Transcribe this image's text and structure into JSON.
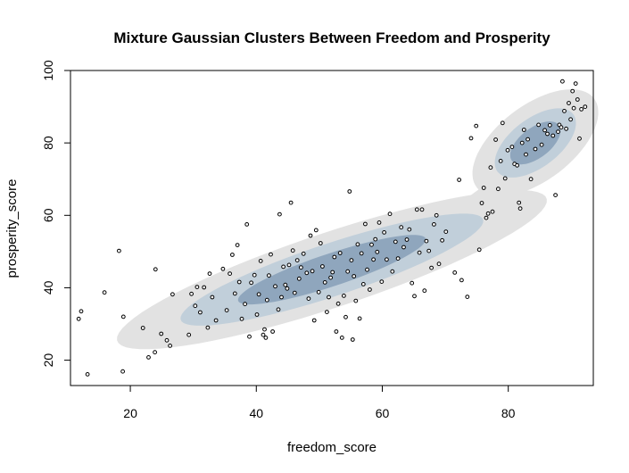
{
  "chart_data": {
    "type": "scatter",
    "title": "Mixture Gaussian Clusters Between Freedom and Prosperity",
    "xlabel": "freedom_score",
    "ylabel": "prosperity_score",
    "xlim": [
      10.5,
      93.5
    ],
    "ylim": [
      13,
      100
    ],
    "x_ticks": [
      20,
      40,
      60,
      80
    ],
    "y_ticks": [
      20,
      40,
      60,
      80,
      100
    ],
    "grid": false,
    "legend": "none",
    "colors": {
      "level1": "#e2e2e2",
      "level2": "#c1cfda",
      "level3": "#8fa6bd",
      "level4": "#4c5e82",
      "point_stroke": "#000000",
      "point_fill": "#ffffff"
    },
    "density_regions": [
      {
        "name": "lower-cluster",
        "center": [
          52,
          45
        ],
        "semi_major": [
          23,
          15.1
        ],
        "semi_minor": [
          7.0,
          -3.4
        ],
        "levels": [
          1.42,
          1.0,
          0.62
        ]
      },
      {
        "name": "upper-cluster",
        "center": [
          84.3,
          80
        ],
        "semi_major": [
          4.8,
          9.3
        ],
        "semi_minor": [
          4.3,
          -2.2
        ],
        "levels": [
          1.55,
          1.0,
          0.62
        ]
      }
    ],
    "points": [
      [
        11.8,
        31.4
      ],
      [
        12.2,
        33.5
      ],
      [
        13.2,
        16.1
      ],
      [
        15.9,
        38.7
      ],
      [
        18.2,
        50.2
      ],
      [
        18.8,
        16.9
      ],
      [
        18.9,
        32.0
      ],
      [
        22.0,
        28.9
      ],
      [
        22.9,
        20.8
      ],
      [
        23.9,
        22.2
      ],
      [
        24.0,
        45.1
      ],
      [
        24.9,
        27.3
      ],
      [
        25.8,
        25.5
      ],
      [
        26.3,
        24.0
      ],
      [
        26.7,
        38.2
      ],
      [
        29.3,
        27.0
      ],
      [
        29.7,
        38.3
      ],
      [
        30.3,
        35.0
      ],
      [
        30.6,
        40.2
      ],
      [
        31.1,
        33.2
      ],
      [
        31.7,
        40.1
      ],
      [
        32.3,
        29.0
      ],
      [
        32.6,
        43.9
      ],
      [
        33.0,
        37.4
      ],
      [
        33.6,
        31.0
      ],
      [
        34.7,
        45.2
      ],
      [
        35.3,
        33.8
      ],
      [
        35.8,
        43.9
      ],
      [
        36.2,
        49.1
      ],
      [
        36.6,
        38.4
      ],
      [
        37.0,
        51.8
      ],
      [
        37.3,
        41.6
      ],
      [
        37.7,
        31.4
      ],
      [
        38.2,
        35.5
      ],
      [
        38.5,
        57.5
      ],
      [
        38.9,
        26.5
      ],
      [
        39.2,
        41.4
      ],
      [
        39.7,
        43.5
      ],
      [
        40.1,
        32.6
      ],
      [
        40.4,
        38.2
      ],
      [
        40.7,
        47.4
      ],
      [
        41.1,
        27.0
      ],
      [
        41.3,
        28.5
      ],
      [
        41.5,
        26.2
      ],
      [
        41.7,
        36.6
      ],
      [
        42.0,
        43.4
      ],
      [
        42.3,
        49.2
      ],
      [
        42.6,
        27.9
      ],
      [
        43.0,
        40.4
      ],
      [
        43.5,
        34.0
      ],
      [
        43.7,
        60.3
      ],
      [
        44.0,
        37.4
      ],
      [
        44.3,
        45.8
      ],
      [
        44.6,
        40.8
      ],
      [
        44.9,
        39.8
      ],
      [
        45.2,
        46.3
      ],
      [
        45.5,
        63.5
      ],
      [
        45.8,
        50.3
      ],
      [
        46.1,
        38.6
      ],
      [
        46.5,
        47.6
      ],
      [
        46.8,
        42.5
      ],
      [
        47.1,
        45.6
      ],
      [
        47.5,
        49.4
      ],
      [
        48.0,
        44.1
      ],
      [
        48.3,
        37.0
      ],
      [
        48.6,
        54.4
      ],
      [
        48.9,
        44.6
      ],
      [
        49.2,
        31.0
      ],
      [
        49.5,
        55.9
      ],
      [
        49.9,
        38.8
      ],
      [
        50.2,
        52.3
      ],
      [
        50.5,
        45.9
      ],
      [
        50.9,
        41.5
      ],
      [
        51.2,
        33.3
      ],
      [
        51.5,
        37.4
      ],
      [
        51.8,
        42.8
      ],
      [
        52.1,
        44.3
      ],
      [
        52.4,
        48.5
      ],
      [
        52.7,
        27.9
      ],
      [
        53.0,
        35.6
      ],
      [
        53.3,
        49.6
      ],
      [
        53.6,
        26.2
      ],
      [
        53.9,
        37.8
      ],
      [
        54.2,
        31.9
      ],
      [
        54.5,
        44.5
      ],
      [
        54.8,
        66.6
      ],
      [
        55.1,
        47.6
      ],
      [
        55.3,
        25.7
      ],
      [
        55.5,
        43.2
      ],
      [
        55.8,
        36.4
      ],
      [
        56.1,
        52.0
      ],
      [
        56.4,
        31.5
      ],
      [
        56.7,
        49.5
      ],
      [
        57.0,
        41.0
      ],
      [
        57.3,
        57.6
      ],
      [
        57.6,
        45.0
      ],
      [
        58.0,
        39.5
      ],
      [
        58.3,
        51.9
      ],
      [
        58.6,
        47.8
      ],
      [
        58.9,
        53.4
      ],
      [
        59.2,
        49.9
      ],
      [
        59.5,
        58.0
      ],
      [
        59.9,
        41.7
      ],
      [
        60.3,
        55.3
      ],
      [
        60.7,
        47.8
      ],
      [
        61.2,
        60.4
      ],
      [
        61.6,
        44.5
      ],
      [
        62.1,
        52.7
      ],
      [
        62.5,
        48.1
      ],
      [
        63.0,
        56.7
      ],
      [
        63.4,
        51.2
      ],
      [
        63.9,
        53.3
      ],
      [
        64.3,
        56.1
      ],
      [
        64.7,
        41.3
      ],
      [
        65.1,
        37.7
      ],
      [
        65.5,
        61.6
      ],
      [
        65.9,
        49.7
      ],
      [
        66.3,
        61.6
      ],
      [
        66.7,
        39.2
      ],
      [
        67.0,
        52.9
      ],
      [
        67.4,
        50.2
      ],
      [
        67.8,
        45.5
      ],
      [
        68.2,
        57.5
      ],
      [
        68.6,
        60.0
      ],
      [
        69.0,
        46.6
      ],
      [
        69.5,
        53.1
      ],
      [
        70.1,
        55.5
      ],
      [
        71.5,
        44.2
      ],
      [
        72.2,
        69.8
      ],
      [
        72.6,
        42.1
      ],
      [
        73.5,
        37.5
      ],
      [
        74.1,
        81.3
      ],
      [
        74.9,
        84.7
      ],
      [
        75.4,
        50.5
      ],
      [
        75.8,
        63.4
      ],
      [
        76.1,
        67.6
      ],
      [
        76.5,
        59.3
      ],
      [
        76.8,
        60.5
      ],
      [
        77.2,
        73.2
      ],
      [
        77.5,
        61.0
      ],
      [
        78.0,
        80.9
      ],
      [
        78.4,
        67.3
      ],
      [
        78.8,
        75.0
      ],
      [
        79.1,
        85.5
      ],
      [
        79.5,
        70.2
      ],
      [
        79.9,
        78.0
      ],
      [
        80.6,
        78.9
      ],
      [
        81.0,
        74.2
      ],
      [
        81.4,
        73.8
      ],
      [
        81.7,
        63.5
      ],
      [
        81.9,
        61.9
      ],
      [
        82.2,
        80.0
      ],
      [
        82.5,
        83.6
      ],
      [
        82.8,
        76.8
      ],
      [
        83.1,
        81.0
      ],
      [
        83.6,
        70.0
      ],
      [
        84.3,
        78.3
      ],
      [
        84.8,
        85.0
      ],
      [
        85.3,
        79.5
      ],
      [
        85.8,
        83.5
      ],
      [
        86.2,
        82.5
      ],
      [
        86.6,
        84.9
      ],
      [
        87.1,
        82.0
      ],
      [
        87.5,
        65.6
      ],
      [
        87.9,
        83.1
      ],
      [
        88.1,
        85.0
      ],
      [
        88.4,
        84.3
      ],
      [
        88.6,
        97.0
      ],
      [
        88.9,
        88.8
      ],
      [
        89.2,
        83.9
      ],
      [
        89.6,
        91.0
      ],
      [
        89.9,
        86.5
      ],
      [
        90.2,
        94.3
      ],
      [
        90.4,
        89.6
      ],
      [
        90.7,
        96.4
      ],
      [
        91.0,
        92.0
      ],
      [
        91.3,
        81.2
      ],
      [
        91.6,
        89.3
      ],
      [
        92.2,
        90.0
      ]
    ]
  }
}
